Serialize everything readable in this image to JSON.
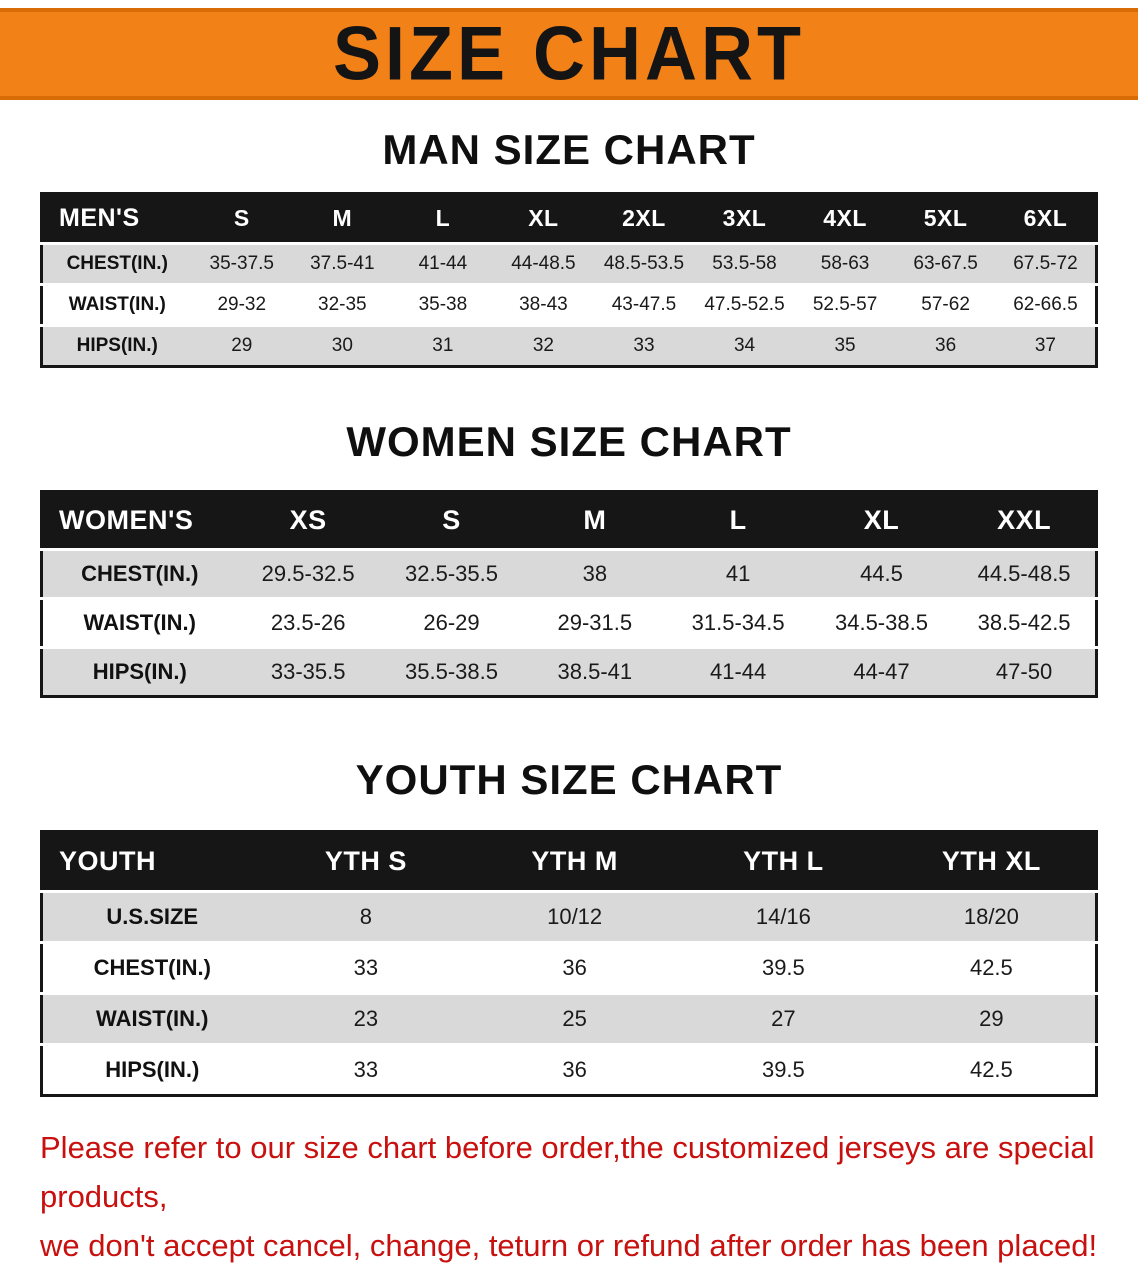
{
  "colors": {
    "accent": "#f28118",
    "accent-dark": "#d96c07",
    "header-bg": "#161616",
    "row-shade": "#d9d9d9",
    "warning": "#c8100e"
  },
  "banner": {
    "title": "SIZE CHART"
  },
  "sections": {
    "men": {
      "heading": "MAN SIZE CHART",
      "corner": "MEN'S",
      "sizes": [
        "S",
        "M",
        "L",
        "XL",
        "2XL",
        "3XL",
        "4XL",
        "5XL",
        "6XL"
      ],
      "rows": [
        {
          "label": "CHEST(IN.)",
          "values": [
            "35-37.5",
            "37.5-41",
            "41-44",
            "44-48.5",
            "48.5-53.5",
            "53.5-58",
            "58-63",
            "63-67.5",
            "67.5-72"
          ]
        },
        {
          "label": "WAIST(IN.)",
          "values": [
            "29-32",
            "32-35",
            "35-38",
            "38-43",
            "43-47.5",
            "47.5-52.5",
            "52.5-57",
            "57-62",
            "62-66.5"
          ]
        },
        {
          "label": "HIPS(IN.)",
          "values": [
            "29",
            "30",
            "31",
            "32",
            "33",
            "34",
            "35",
            "36",
            "37"
          ]
        }
      ]
    },
    "women": {
      "heading": "WOMEN SIZE CHART",
      "corner": "WOMEN'S",
      "sizes": [
        "XS",
        "S",
        "M",
        "L",
        "XL",
        "XXL"
      ],
      "rows": [
        {
          "label": "CHEST(IN.)",
          "values": [
            "29.5-32.5",
            "32.5-35.5",
            "38",
            "41",
            "44.5",
            "44.5-48.5"
          ]
        },
        {
          "label": "WAIST(IN.)",
          "values": [
            "23.5-26",
            "26-29",
            "29-31.5",
            "31.5-34.5",
            "34.5-38.5",
            "38.5-42.5"
          ]
        },
        {
          "label": "HIPS(IN.)",
          "values": [
            "33-35.5",
            "35.5-38.5",
            "38.5-41",
            "41-44",
            "44-47",
            "47-50"
          ]
        }
      ]
    },
    "youth": {
      "heading": "YOUTH SIZE CHART",
      "corner": "YOUTH",
      "sizes": [
        "YTH S",
        "YTH M",
        "YTH L",
        "YTH XL"
      ],
      "rows": [
        {
          "label": "U.S.SIZE",
          "values": [
            "8",
            "10/12",
            "14/16",
            "18/20"
          ]
        },
        {
          "label": "CHEST(IN.)",
          "values": [
            "33",
            "36",
            "39.5",
            "42.5"
          ]
        },
        {
          "label": "WAIST(IN.)",
          "values": [
            "23",
            "25",
            "27",
            "29"
          ]
        },
        {
          "label": "HIPS(IN.)",
          "values": [
            "33",
            "36",
            "39.5",
            "42.5"
          ]
        }
      ]
    }
  },
  "footer": {
    "line1": "Please refer to our size chart before order,the customized jerseys are special products,",
    "line2": "we don't accept cancel, change, teturn or refund after order has been placed!"
  }
}
